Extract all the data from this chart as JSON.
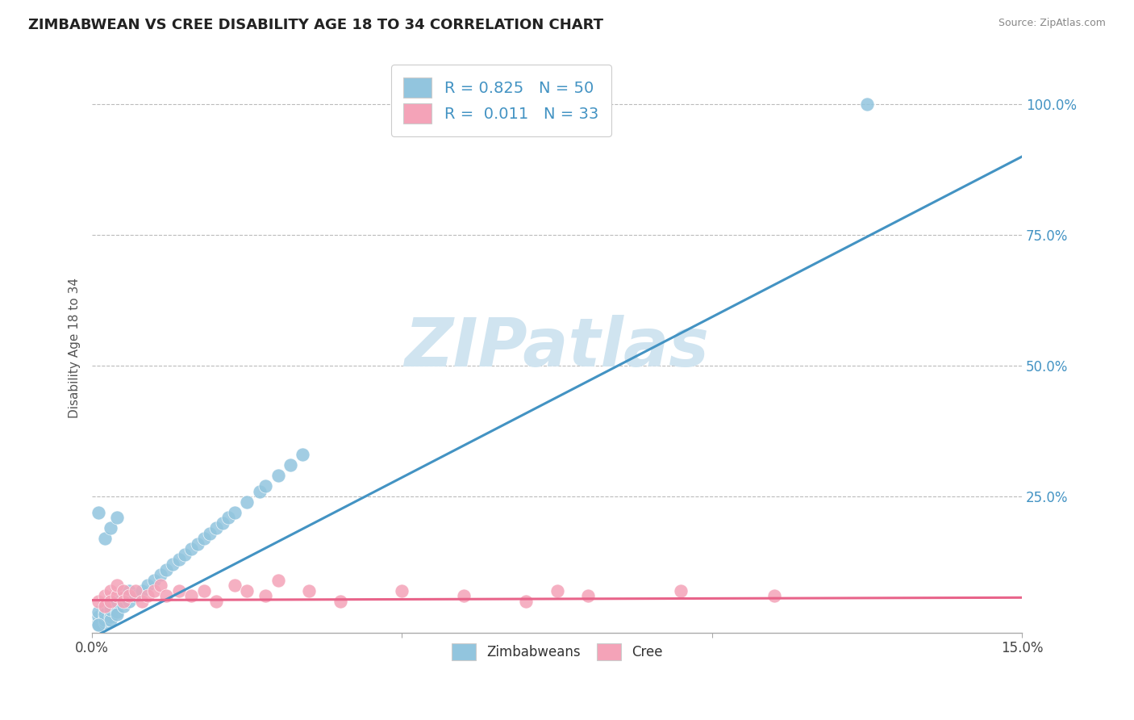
{
  "title": "ZIMBABWEAN VS CREE DISABILITY AGE 18 TO 34 CORRELATION CHART",
  "source_text": "Source: ZipAtlas.com",
  "ylabel": "Disability Age 18 to 34",
  "xlim": [
    0.0,
    0.15
  ],
  "ylim": [
    -0.01,
    1.08
  ],
  "ytick_positions": [
    1.0,
    0.75,
    0.5,
    0.25
  ],
  "blue_color": "#92c5de",
  "pink_color": "#f4a3b8",
  "blue_line_color": "#4393c3",
  "pink_line_color": "#e8648a",
  "watermark": "ZIPatlas",
  "watermark_color": "#d0e4f0",
  "background_color": "#ffffff",
  "grid_color": "#bbbbbb",
  "blue_trend_x0": 0.0,
  "blue_trend_y0": -0.02,
  "blue_trend_x1": 0.15,
  "blue_trend_y1": 0.9,
  "pink_trend_x0": 0.0,
  "pink_trend_y0": 0.052,
  "pink_trend_x1": 0.15,
  "pink_trend_y1": 0.057,
  "blue_scatter_x": [
    0.001,
    0.001,
    0.001,
    0.001,
    0.002,
    0.002,
    0.002,
    0.002,
    0.002,
    0.003,
    0.003,
    0.003,
    0.003,
    0.003,
    0.004,
    0.004,
    0.004,
    0.005,
    0.005,
    0.006,
    0.006,
    0.007,
    0.008,
    0.009,
    0.01,
    0.011,
    0.012,
    0.013,
    0.014,
    0.015,
    0.016,
    0.017,
    0.018,
    0.019,
    0.02,
    0.021,
    0.022,
    0.023,
    0.025,
    0.027,
    0.028,
    0.03,
    0.032,
    0.034,
    0.001,
    0.002,
    0.003,
    0.004,
    0.125,
    0.001
  ],
  "blue_scatter_y": [
    0.01,
    0.02,
    0.03,
    0.005,
    0.02,
    0.01,
    0.03,
    0.015,
    0.025,
    0.03,
    0.02,
    0.04,
    0.015,
    0.035,
    0.03,
    0.05,
    0.025,
    0.04,
    0.06,
    0.05,
    0.07,
    0.06,
    0.07,
    0.08,
    0.09,
    0.1,
    0.11,
    0.12,
    0.13,
    0.14,
    0.15,
    0.16,
    0.17,
    0.18,
    0.19,
    0.2,
    0.21,
    0.22,
    0.24,
    0.26,
    0.27,
    0.29,
    0.31,
    0.33,
    0.22,
    0.17,
    0.19,
    0.21,
    1.0,
    0.005
  ],
  "pink_scatter_x": [
    0.001,
    0.002,
    0.002,
    0.003,
    0.003,
    0.004,
    0.004,
    0.005,
    0.005,
    0.006,
    0.007,
    0.008,
    0.009,
    0.01,
    0.011,
    0.012,
    0.014,
    0.016,
    0.018,
    0.02,
    0.023,
    0.025,
    0.028,
    0.03,
    0.035,
    0.04,
    0.05,
    0.06,
    0.07,
    0.075,
    0.08,
    0.095,
    0.11
  ],
  "pink_scatter_y": [
    0.05,
    0.06,
    0.04,
    0.07,
    0.05,
    0.06,
    0.08,
    0.07,
    0.05,
    0.06,
    0.07,
    0.05,
    0.06,
    0.07,
    0.08,
    0.06,
    0.07,
    0.06,
    0.07,
    0.05,
    0.08,
    0.07,
    0.06,
    0.09,
    0.07,
    0.05,
    0.07,
    0.06,
    0.05,
    0.07,
    0.06,
    0.07,
    0.06
  ]
}
